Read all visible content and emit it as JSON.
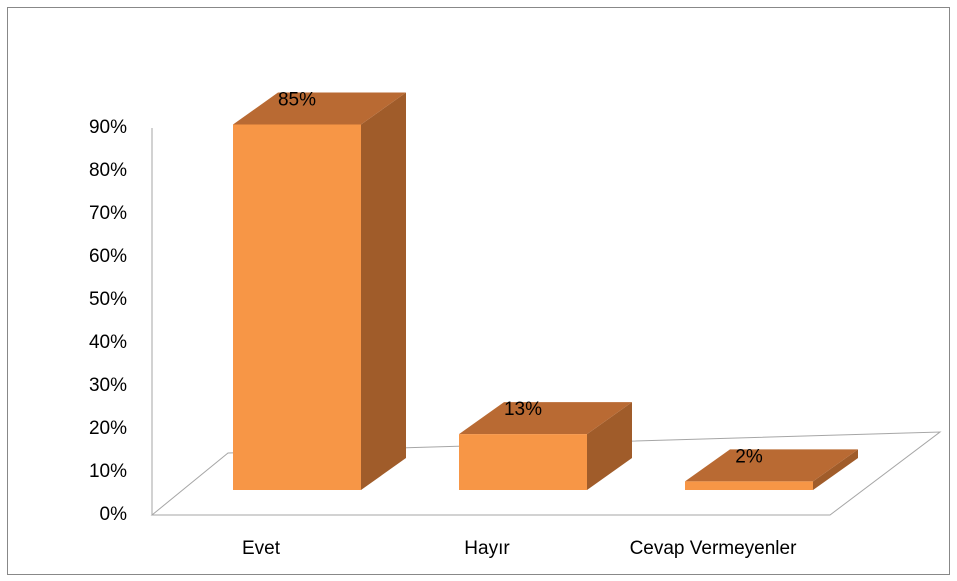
{
  "chart_data": {
    "type": "bar3d",
    "categories": [
      "Evet",
      "Hayır",
      "Cevap Vermeyenler"
    ],
    "values": [
      85,
      13,
      2
    ],
    "value_labels": [
      "85%",
      "13%",
      "2%"
    ],
    "color": "#f79646",
    "ylim": [
      0,
      90
    ],
    "yticks": [
      {
        "value": 0,
        "label": "0%"
      },
      {
        "value": 10,
        "label": "10%"
      },
      {
        "value": 20,
        "label": "20%"
      },
      {
        "value": 30,
        "label": "30%"
      },
      {
        "value": 40,
        "label": "40%"
      },
      {
        "value": 50,
        "label": "50%"
      },
      {
        "value": 60,
        "label": "60%"
      },
      {
        "value": 70,
        "label": "70%"
      },
      {
        "value": 80,
        "label": "80%"
      },
      {
        "value": 90,
        "label": "90%"
      }
    ]
  }
}
